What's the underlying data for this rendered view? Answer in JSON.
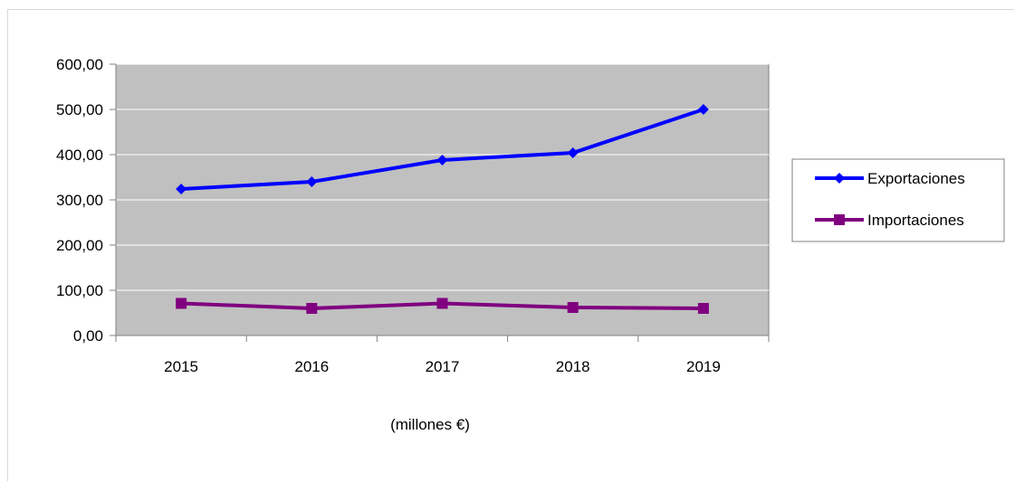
{
  "chart_data": {
    "type": "line",
    "title": "",
    "xlabel": "(millones €)",
    "ylabel": "",
    "categories": [
      "2015",
      "2016",
      "2017",
      "2018",
      "2019"
    ],
    "ylim": [
      0,
      600
    ],
    "yticks": [
      "0,00",
      "100,00",
      "200,00",
      "300,00",
      "400,00",
      "500,00",
      "600,00"
    ],
    "grid": true,
    "legend_position": "right",
    "series": [
      {
        "name": "Exportaciones",
        "values": [
          324,
          340,
          388,
          404,
          500
        ],
        "color": "#0000ff",
        "marker": "diamond"
      },
      {
        "name": "Importaciones",
        "values": [
          71,
          60,
          71,
          62,
          60
        ],
        "color": "#800080",
        "marker": "square"
      }
    ],
    "plot_background": "#c0c0c0"
  }
}
